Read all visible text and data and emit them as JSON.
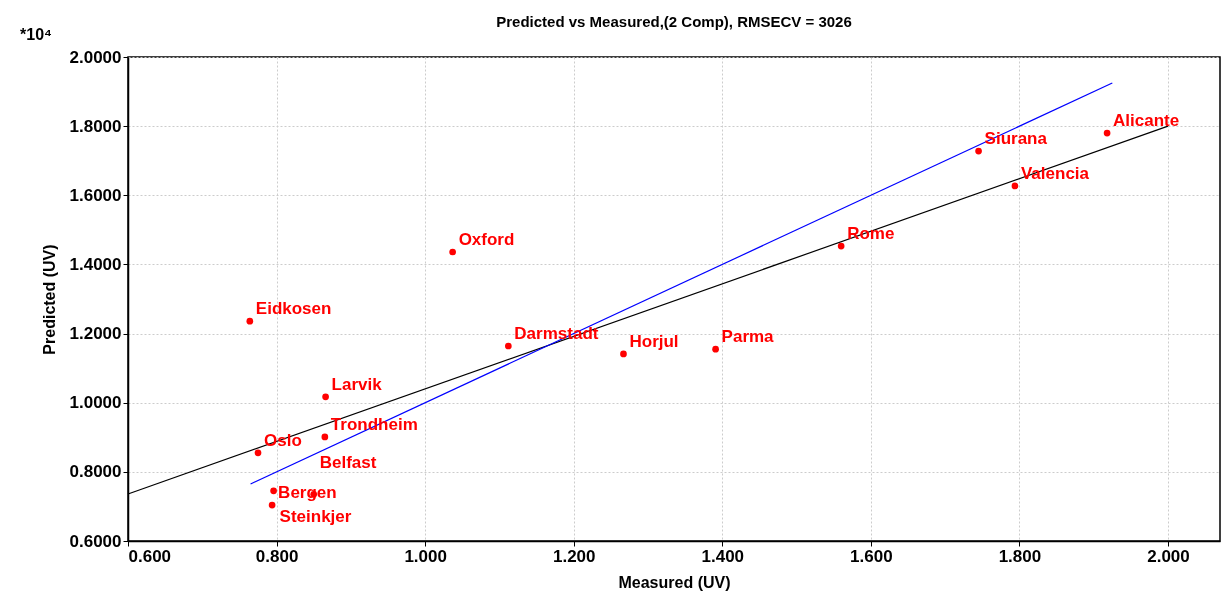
{
  "chart_data": {
    "type": "scatter",
    "title": "Predicted vs Measured,(2 Comp), RMSECV = 3026",
    "xlabel": "Measured (UV)",
    "ylabel": "Predicted (UV)",
    "xlim": [
      0.6,
      2.07
    ],
    "ylim": [
      0.6,
      2.0
    ],
    "xticks": [
      {
        "value": 0.6,
        "label": "0.600"
      },
      {
        "value": 0.8,
        "label": "0.800"
      },
      {
        "value": 1.0,
        "label": "1.000"
      },
      {
        "value": 1.2,
        "label": "1.200"
      },
      {
        "value": 1.4,
        "label": "1.400"
      },
      {
        "value": 1.6,
        "label": "1.600"
      },
      {
        "value": 1.8,
        "label": "1.800"
      },
      {
        "value": 2.0,
        "label": "2.000"
      }
    ],
    "yticks": [
      {
        "value": 0.6,
        "label": "0.6000"
      },
      {
        "value": 0.8,
        "label": "0.8000"
      },
      {
        "value": 1.0,
        "label": "1.0000"
      },
      {
        "value": 1.2,
        "label": "1.2000"
      },
      {
        "value": 1.4,
        "label": "1.4000"
      },
      {
        "value": 1.6,
        "label": "1.6000"
      },
      {
        "value": 1.8,
        "label": "1.8000"
      },
      {
        "value": 2.0,
        "label": "2.0000"
      }
    ],
    "grid": true,
    "series": [
      {
        "type": "scatter",
        "marker": "circle",
        "color": "#ff0000",
        "x": [
          0.764,
          1.037,
          1.112,
          1.267,
          1.391,
          1.56,
          1.745,
          1.794,
          1.918,
          0.866,
          0.865,
          0.775,
          0.794,
          0.796,
          0.85
        ],
        "values": [
          1.236,
          1.436,
          1.164,
          1.141,
          1.155,
          1.453,
          1.728,
          1.627,
          1.78,
          1.017,
          0.901,
          0.855,
          0.704,
          0.745,
          0.735
        ]
      },
      {
        "type": "line",
        "color": "#000000",
        "line_style": "solid",
        "x": [
          0.6,
          2.0
        ],
        "values": [
          0.736,
          1.8
        ]
      },
      {
        "type": "line",
        "color": "#0000ff",
        "line_style": "solid",
        "x": [
          0.765,
          1.925
        ],
        "values": [
          0.765,
          1.925
        ]
      }
    ],
    "annotations": [
      "*10⁴",
      {
        "text": "Eidkosen",
        "x": 0.764,
        "y": 1.236
      },
      {
        "text": "Oxford",
        "x": 1.037,
        "y": 1.436
      },
      {
        "text": "Darmstadt",
        "x": 1.112,
        "y": 1.164
      },
      {
        "text": "Horjul",
        "x": 1.267,
        "y": 1.141
      },
      {
        "text": "Parma",
        "x": 1.391,
        "y": 1.155
      },
      {
        "text": "Rome",
        "x": 1.56,
        "y": 1.453
      },
      {
        "text": "Siurana",
        "x": 1.745,
        "y": 1.728
      },
      {
        "text": "Valencia",
        "x": 1.794,
        "y": 1.627
      },
      {
        "text": "Alicante",
        "x": 1.918,
        "y": 1.78
      },
      {
        "text": "Larvik",
        "x": 0.866,
        "y": 1.017
      },
      {
        "text": "Trondheim",
        "x": 0.865,
        "y": 0.901
      },
      {
        "text": "Oslo",
        "x": 0.775,
        "y": 0.855
      },
      {
        "text": "Bergen",
        "x": 0.794,
        "y": 0.704
      },
      {
        "text": "Steinkjer",
        "x": 0.796,
        "y": 0.745
      },
      {
        "text": "Belfast",
        "x": 0.85,
        "y": 0.735
      }
    ]
  }
}
